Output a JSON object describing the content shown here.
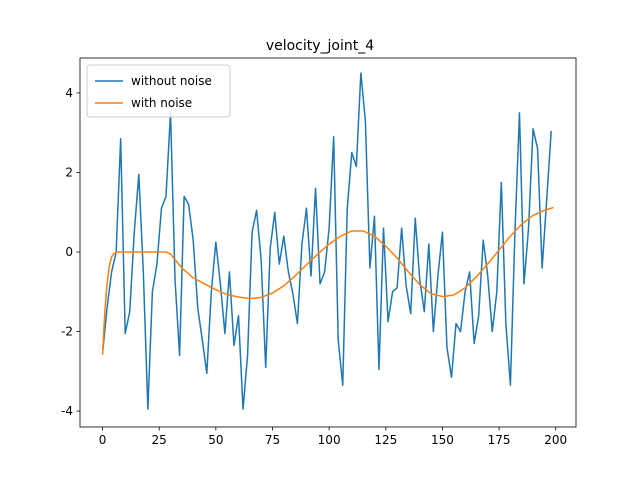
{
  "chart_data": {
    "type": "line",
    "title": "velocity_joint_4",
    "xlim": [
      -9.95,
      208.95
    ],
    "xticks": [
      0,
      25,
      50,
      75,
      100,
      125,
      150,
      175,
      200
    ],
    "ylim": [
      -4.4,
      4.88
    ],
    "yticks": [
      -4,
      -2,
      0,
      2,
      4
    ],
    "grid": false,
    "legend": "upper left",
    "series": [
      {
        "name": "without noise",
        "color": "#1f77b4",
        "x": [
          0,
          2,
          4,
          6,
          8,
          10,
          12,
          14,
          16,
          18,
          20,
          22,
          24,
          26,
          28,
          30,
          32,
          34,
          36,
          38,
          40,
          42,
          44,
          46,
          48,
          50,
          52,
          54,
          56,
          58,
          60,
          62,
          64,
          66,
          68,
          70,
          72,
          74,
          76,
          78,
          80,
          82,
          84,
          86,
          88,
          90,
          92,
          94,
          96,
          98,
          100,
          102,
          104,
          106,
          108,
          110,
          112,
          114,
          116,
          118,
          120,
          122,
          124,
          126,
          128,
          130,
          132,
          134,
          136,
          138,
          140,
          142,
          144,
          146,
          148,
          150,
          152,
          154,
          156,
          158,
          160,
          162,
          164,
          166,
          168,
          170,
          172,
          174,
          176,
          178,
          180,
          182,
          184,
          186,
          188,
          190,
          192,
          194,
          196,
          198
        ],
        "values": [
          -2.55,
          -1.4,
          -0.5,
          0.0,
          2.85,
          -2.05,
          -1.5,
          0.5,
          1.95,
          -0.5,
          -3.95,
          -1.0,
          -0.3,
          1.1,
          1.4,
          3.5,
          -0.7,
          -2.6,
          1.4,
          1.2,
          0.3,
          -1.4,
          -2.2,
          -3.05,
          -1.0,
          0.25,
          -0.8,
          -2.05,
          -0.5,
          -2.35,
          -1.6,
          -3.95,
          -2.6,
          0.5,
          1.05,
          -0.2,
          -2.9,
          0.1,
          1.0,
          -0.3,
          0.4,
          -0.5,
          -1.05,
          -1.8,
          0.2,
          1.1,
          -0.6,
          1.6,
          -0.8,
          -0.5,
          0.6,
          2.9,
          -2.2,
          -3.35,
          1.1,
          2.5,
          2.15,
          4.5,
          3.3,
          -0.4,
          0.9,
          -2.95,
          0.6,
          -1.75,
          -1.0,
          -0.9,
          0.6,
          -0.85,
          -1.55,
          0.85,
          -0.7,
          -1.5,
          0.2,
          -2.0,
          -0.6,
          0.5,
          -2.4,
          -3.15,
          -1.8,
          -2.0,
          -1.0,
          -0.5,
          -2.3,
          -1.6,
          0.3,
          -0.6,
          -2.0,
          -1.0,
          1.75,
          -1.8,
          -3.35,
          0.5,
          3.5,
          -0.8,
          0.6,
          3.1,
          2.6,
          -0.4,
          1.3,
          3.05
        ]
      },
      {
        "name": "with noise",
        "color": "#ff7f0e",
        "x": [
          0,
          1,
          2,
          3,
          4,
          5,
          6,
          7,
          8,
          10,
          15,
          20,
          25,
          28,
          30,
          35,
          40,
          45,
          50,
          55,
          60,
          65,
          70,
          75,
          80,
          85,
          90,
          95,
          100,
          105,
          110,
          115,
          120,
          125,
          130,
          135,
          140,
          145,
          150,
          155,
          160,
          165,
          170,
          175,
          180,
          185,
          190,
          195,
          199
        ],
        "values": [
          -2.58,
          -1.5,
          -0.8,
          -0.35,
          -0.12,
          -0.04,
          -0.01,
          0,
          0,
          0,
          0,
          0,
          0,
          0,
          -0.05,
          -0.4,
          -0.65,
          -0.8,
          -0.95,
          -1.07,
          -1.13,
          -1.17,
          -1.14,
          -1.03,
          -0.85,
          -0.6,
          -0.32,
          -0.05,
          0.2,
          0.4,
          0.53,
          0.53,
          0.4,
          0.15,
          -0.15,
          -0.5,
          -0.82,
          -1.05,
          -1.12,
          -1.08,
          -0.9,
          -0.62,
          -0.3,
          0.05,
          0.4,
          0.7,
          0.92,
          1.05,
          1.12
        ]
      }
    ]
  }
}
